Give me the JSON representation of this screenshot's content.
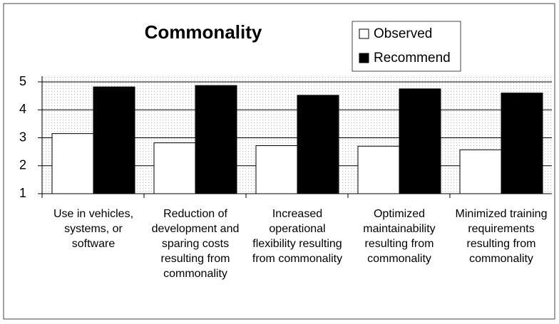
{
  "chart_data": {
    "type": "bar",
    "title": "Commonality",
    "categories": [
      "Use in vehicles, systems, or software",
      "Reduction of development and sparing costs resulting from commonality",
      "Increased operational flexibility resulting from commonality",
      "Optimized maintainability resulting from commonality",
      "Minimized training requirements resulting from commonality"
    ],
    "series": [
      {
        "name": "Observed",
        "color": "#ffffff",
        "values": [
          3.15,
          2.82,
          2.72,
          2.7,
          2.57
        ]
      },
      {
        "name": "Recommend",
        "color": "#000000",
        "values": [
          4.82,
          4.87,
          4.52,
          4.75,
          4.6
        ]
      }
    ],
    "ylim": [
      1,
      5
    ],
    "yticks": [
      1,
      2,
      3,
      4,
      5
    ],
    "grid": true,
    "legend": "top-right"
  }
}
